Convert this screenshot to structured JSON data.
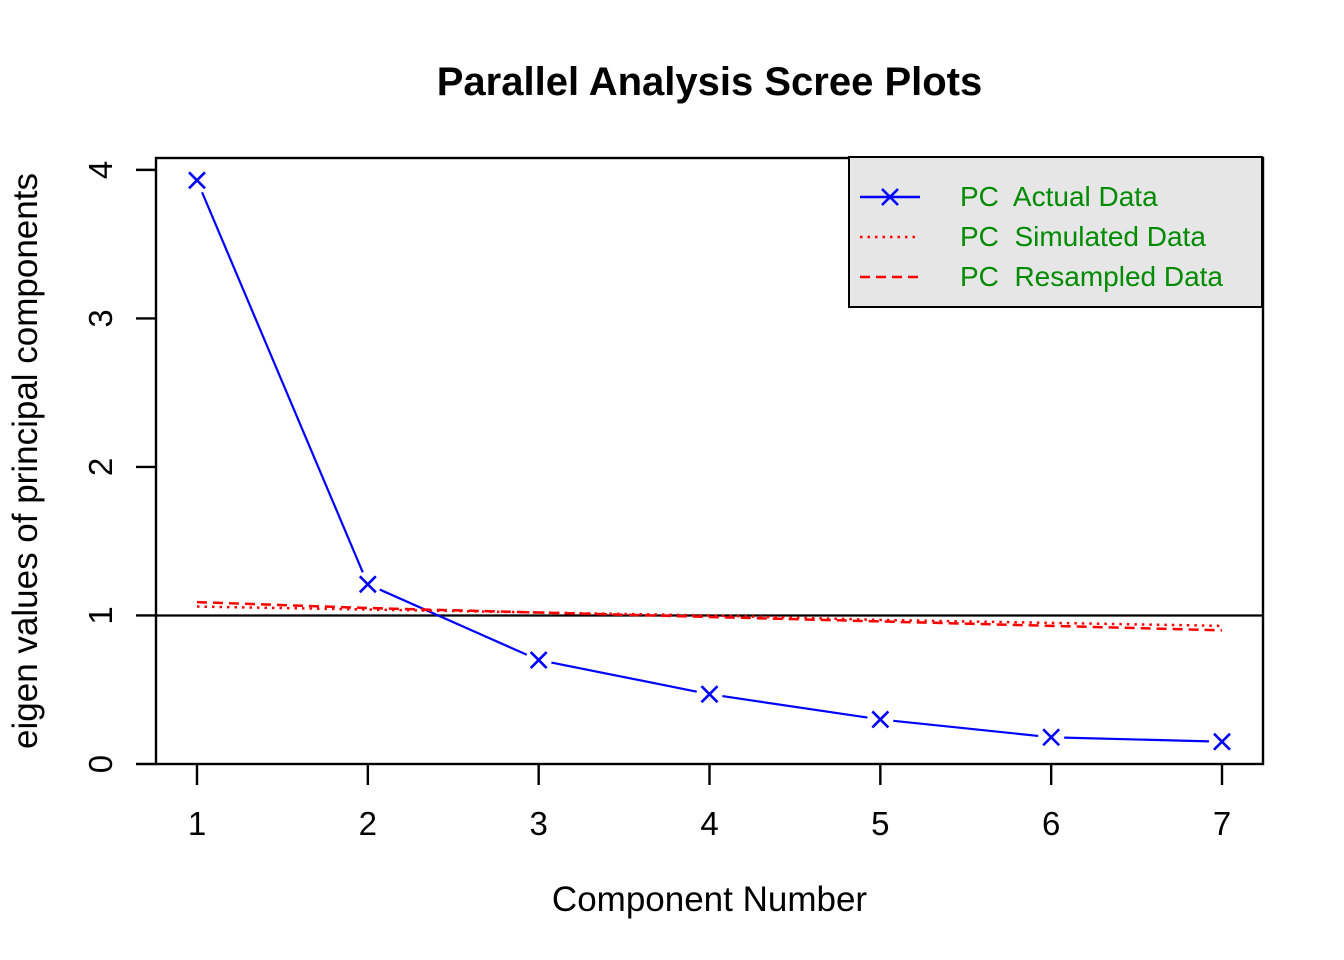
{
  "chart_data": {
    "type": "line",
    "title": "Parallel Analysis Scree Plots",
    "xlabel": "Component Number",
    "ylabel": "eigen values of principal components",
    "x": [
      1,
      2,
      3,
      4,
      5,
      6,
      7
    ],
    "xticks": [
      1,
      2,
      3,
      4,
      5,
      6,
      7
    ],
    "yticks": [
      0,
      1,
      2,
      3,
      4
    ],
    "xlim": [
      0.76,
      7.24
    ],
    "ylim": [
      0,
      4.08
    ],
    "grid": false,
    "reference_hline": 1,
    "series": [
      {
        "name": "PC  Actual Data",
        "values": [
          3.93,
          1.21,
          0.7,
          0.47,
          0.3,
          0.18,
          0.15
        ],
        "color": "#0000FF",
        "style": "solid",
        "marker": "x"
      },
      {
        "name": "PC  Simulated Data",
        "values": [
          1.06,
          1.04,
          1.02,
          1.0,
          0.97,
          0.95,
          0.93
        ],
        "color": "#FF0000",
        "style": "dotted",
        "marker": null
      },
      {
        "name": "PC  Resampled Data",
        "values": [
          1.09,
          1.05,
          1.02,
          0.99,
          0.96,
          0.93,
          0.9
        ],
        "color": "#FF0000",
        "style": "dashed",
        "marker": null
      }
    ],
    "legend": {
      "position": "top-right",
      "background": "#E6E6E6",
      "border_color": "#000000",
      "text_color": "#008B00",
      "entries": [
        "PC  Actual Data",
        "PC  Simulated Data",
        "PC  Resampled Data"
      ]
    },
    "axis_color": "#000000"
  }
}
